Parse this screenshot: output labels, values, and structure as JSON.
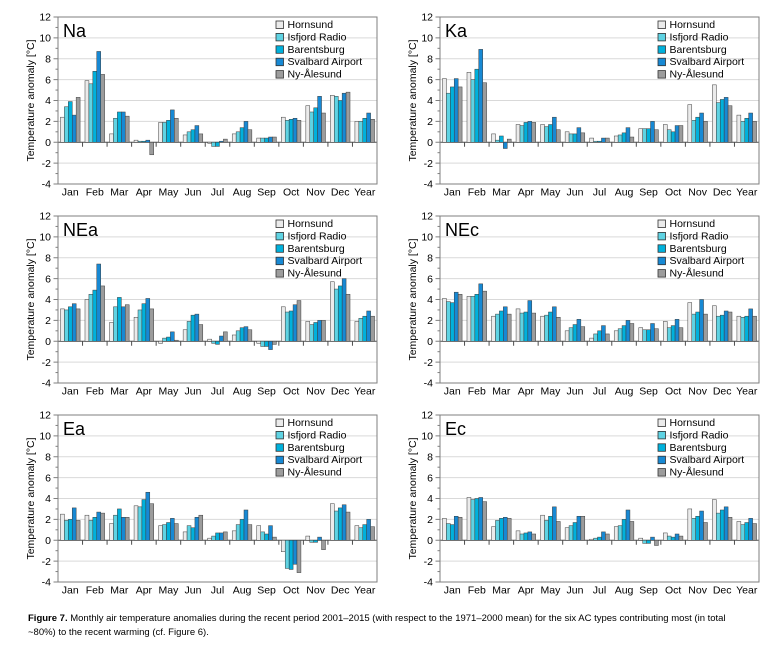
{
  "figure": {
    "caption_prefix": "Figure 7.",
    "caption_text": " Monthly air temperature anomalies during the recent period 2001–2015 (with respect to the 1971–2000 mean) for the six AC types contributing most (in total ~80%) to the recent warming (cf. Figure 6)."
  },
  "stations": [
    {
      "name": "Hornsund",
      "color": "#ebebeb"
    },
    {
      "name": "Isfjord Radio",
      "color": "#5fd3e3"
    },
    {
      "name": "Barentsburg",
      "color": "#00b1dc"
    },
    {
      "name": "Svalbard Airport",
      "color": "#1789d4"
    },
    {
      "name": "Ny-Ålesund",
      "color": "#9c9c9c"
    }
  ],
  "axis_style": {
    "ylabel": "Temperature anomaly [°C]",
    "ylim": [
      -4,
      12
    ],
    "ytick_step": 2,
    "grid": true,
    "legend_position": "top-right",
    "grid_color": "#d9d9d9",
    "zero_line_color": "#4d4d4d",
    "frame_color": "#7f7f7f",
    "bar_stroke_color": "#3d3d3d"
  },
  "chart_data": [
    {
      "type": "bar",
      "title": "Na",
      "ylabel": "Temperature anomaly [°C]",
      "ylim": [
        -4,
        12
      ],
      "ytick_step": 2,
      "grid": true,
      "legend_position": "top-right",
      "categories": [
        "Jan",
        "Feb",
        "Mar",
        "Apr",
        "May",
        "Jun",
        "Jul",
        "Aug",
        "Sep",
        "Oct",
        "Nov",
        "Dec",
        "Year"
      ],
      "series": [
        {
          "name": "Hornsund",
          "values": [
            2.4,
            5.9,
            0.8,
            0.2,
            1.9,
            0.7,
            -0.1,
            0.8,
            0.4,
            2.4,
            3.5,
            4.5,
            2.0
          ]
        },
        {
          "name": "Isfjord Radio",
          "values": [
            3.4,
            5.6,
            2.3,
            0.1,
            1.9,
            1.0,
            -0.4,
            1.0,
            0.4,
            2.1,
            2.9,
            4.4,
            2.0
          ]
        },
        {
          "name": "Barentsburg",
          "values": [
            3.9,
            6.8,
            2.9,
            0.1,
            2.1,
            1.2,
            -0.4,
            1.4,
            0.4,
            2.2,
            3.3,
            4.0,
            2.3
          ]
        },
        {
          "name": "Svalbard Airport",
          "values": [
            2.6,
            8.7,
            2.9,
            0.2,
            3.1,
            1.6,
            0.1,
            2.0,
            0.5,
            2.3,
            4.4,
            4.7,
            2.8
          ]
        },
        {
          "name": "Ny-Ålesund",
          "values": [
            4.3,
            6.5,
            2.5,
            -1.2,
            2.3,
            0.8,
            0.3,
            1.2,
            0.5,
            2.1,
            2.8,
            4.8,
            2.2
          ]
        }
      ]
    },
    {
      "type": "bar",
      "title": "Ka",
      "ylabel": "Temperature anomaly [°C]",
      "ylim": [
        -4,
        12
      ],
      "ytick_step": 2,
      "grid": true,
      "legend_position": "top-right",
      "categories": [
        "Jan",
        "Feb",
        "Mar",
        "Apr",
        "May",
        "Jun",
        "Jul",
        "Aug",
        "Sep",
        "Oct",
        "Nov",
        "Dec",
        "Year"
      ],
      "series": [
        {
          "name": "Hornsund",
          "values": [
            6.1,
            6.7,
            0.8,
            1.7,
            1.7,
            1.0,
            0.4,
            0.6,
            1.3,
            1.7,
            3.6,
            5.5,
            2.6
          ]
        },
        {
          "name": "Isfjord Radio",
          "values": [
            4.7,
            6.0,
            0.2,
            1.6,
            1.5,
            0.8,
            0.1,
            0.7,
            1.3,
            1.2,
            2.1,
            3.8,
            2.0
          ]
        },
        {
          "name": "Barentsburg",
          "values": [
            5.3,
            7.0,
            0.6,
            1.9,
            1.7,
            0.8,
            0.1,
            0.9,
            1.3,
            1.0,
            2.4,
            4.1,
            2.3
          ]
        },
        {
          "name": "Svalbard Airport",
          "values": [
            6.1,
            8.9,
            -0.6,
            2.0,
            2.4,
            1.4,
            0.4,
            1.4,
            2.0,
            1.6,
            2.8,
            4.3,
            2.8
          ]
        },
        {
          "name": "Ny-Ålesund",
          "values": [
            5.3,
            5.7,
            0.3,
            1.9,
            1.2,
            0.9,
            0.4,
            0.5,
            1.2,
            1.6,
            2.0,
            3.5,
            2.0
          ]
        }
      ]
    },
    {
      "type": "bar",
      "title": "NEa",
      "ylabel": "Temperature anomaly [°C]",
      "ylim": [
        -4,
        12
      ],
      "ytick_step": 2,
      "grid": true,
      "legend_position": "top-right",
      "categories": [
        "Jan",
        "Feb",
        "Mar",
        "Apr",
        "May",
        "Jun",
        "Jul",
        "Aug",
        "Sep",
        "Oct",
        "Nov",
        "Dec",
        "Year"
      ],
      "series": [
        {
          "name": "Hornsund",
          "values": [
            3.1,
            4.0,
            1.8,
            2.3,
            -0.2,
            1.1,
            0.2,
            0.6,
            -0.2,
            3.3,
            1.9,
            5.7,
            1.9
          ]
        },
        {
          "name": "Isfjord Radio",
          "values": [
            3.0,
            4.5,
            3.3,
            3.0,
            0.3,
            1.9,
            -0.2,
            1.0,
            -0.5,
            2.8,
            1.6,
            5.0,
            2.2
          ]
        },
        {
          "name": "Barentsburg",
          "values": [
            3.3,
            4.9,
            4.2,
            3.6,
            0.4,
            2.5,
            -0.3,
            1.3,
            -0.5,
            2.9,
            1.8,
            5.3,
            2.4
          ]
        },
        {
          "name": "Svalbard Airport",
          "values": [
            3.6,
            7.4,
            3.3,
            4.1,
            0.9,
            2.6,
            0.5,
            1.4,
            -0.8,
            3.5,
            2.0,
            6.0,
            2.9
          ]
        },
        {
          "name": "Ny-Ålesund",
          "values": [
            3.1,
            5.3,
            3.5,
            3.1,
            0.1,
            1.6,
            0.9,
            1.1,
            -0.3,
            3.9,
            2.0,
            4.5,
            2.4
          ]
        }
      ]
    },
    {
      "type": "bar",
      "title": "NEc",
      "ylabel": "Temperature anomaly [°C]",
      "ylim": [
        -4,
        12
      ],
      "ytick_step": 2,
      "grid": true,
      "legend_position": "top-right",
      "categories": [
        "Jan",
        "Feb",
        "Mar",
        "Apr",
        "May",
        "Jun",
        "Jul",
        "Aug",
        "Sep",
        "Oct",
        "Nov",
        "Dec",
        "Year"
      ],
      "series": [
        {
          "name": "Hornsund",
          "values": [
            4.1,
            4.3,
            2.4,
            3.1,
            2.4,
            1.0,
            0.3,
            1.0,
            1.3,
            1.9,
            3.7,
            3.4,
            2.4
          ]
        },
        {
          "name": "Isfjord Radio",
          "values": [
            3.8,
            4.3,
            2.6,
            2.7,
            2.5,
            1.3,
            0.7,
            1.2,
            1.1,
            1.3,
            2.6,
            2.4,
            2.3
          ]
        },
        {
          "name": "Barentsburg",
          "values": [
            3.7,
            4.5,
            2.9,
            2.8,
            2.8,
            1.6,
            1.0,
            1.5,
            1.1,
            1.5,
            2.8,
            2.5,
            2.4
          ]
        },
        {
          "name": "Svalbard Airport",
          "values": [
            4.7,
            5.5,
            3.3,
            3.9,
            3.3,
            2.1,
            1.5,
            2.0,
            1.7,
            2.1,
            4.0,
            2.9,
            3.1
          ]
        },
        {
          "name": "Ny-Ålesund",
          "values": [
            4.5,
            4.8,
            2.6,
            2.7,
            2.3,
            1.4,
            0.7,
            1.7,
            1.2,
            1.3,
            2.6,
            2.8,
            2.4
          ]
        }
      ]
    },
    {
      "type": "bar",
      "title": "Ea",
      "ylabel": "Temperature anomaly [°C]",
      "ylim": [
        -4,
        12
      ],
      "ytick_step": 2,
      "grid": true,
      "legend_position": "top-right",
      "categories": [
        "Jan",
        "Feb",
        "Mar",
        "Apr",
        "May",
        "Jun",
        "Jul",
        "Aug",
        "Sep",
        "Oct",
        "Nov",
        "Dec",
        "Year"
      ],
      "series": [
        {
          "name": "Hornsund",
          "values": [
            2.5,
            2.4,
            1.6,
            3.3,
            1.4,
            0.8,
            0.2,
            0.9,
            1.4,
            -1.1,
            0.4,
            3.5,
            1.4
          ]
        },
        {
          "name": "Isfjord Radio",
          "values": [
            1.9,
            1.9,
            2.4,
            3.2,
            1.5,
            1.4,
            0.4,
            1.5,
            0.8,
            -2.7,
            -0.2,
            2.8,
            1.2
          ]
        },
        {
          "name": "Barentsburg",
          "values": [
            2.0,
            2.2,
            3.0,
            3.9,
            1.7,
            1.2,
            0.7,
            2.0,
            0.6,
            -2.8,
            -0.2,
            3.1,
            1.5
          ]
        },
        {
          "name": "Svalbard Airport",
          "values": [
            3.1,
            2.7,
            2.2,
            4.6,
            2.1,
            2.2,
            0.7,
            2.9,
            1.4,
            -2.3,
            0.3,
            3.4,
            2.0
          ]
        },
        {
          "name": "Ny-Ålesund",
          "values": [
            1.9,
            2.6,
            2.2,
            3.5,
            1.6,
            2.4,
            0.8,
            1.5,
            0.3,
            -3.1,
            -0.9,
            2.7,
            1.3
          ]
        }
      ]
    },
    {
      "type": "bar",
      "title": "Ec",
      "ylabel": "Temperature anomaly [°C]",
      "ylim": [
        -4,
        12
      ],
      "ytick_step": 2,
      "grid": true,
      "legend_position": "top-right",
      "categories": [
        "Jan",
        "Feb",
        "Mar",
        "Apr",
        "May",
        "Jun",
        "Jul",
        "Aug",
        "Sep",
        "Oct",
        "Nov",
        "Dec",
        "Year"
      ],
      "series": [
        {
          "name": "Hornsund",
          "values": [
            2.1,
            4.1,
            1.3,
            0.9,
            2.4,
            1.2,
            0.1,
            1.3,
            0.2,
            0.7,
            3.0,
            3.9,
            1.8
          ]
        },
        {
          "name": "Isfjord Radio",
          "values": [
            1.6,
            3.9,
            1.9,
            0.6,
            1.9,
            1.4,
            0.2,
            1.4,
            -0.3,
            0.4,
            2.1,
            2.6,
            1.5
          ]
        },
        {
          "name": "Barentsburg",
          "values": [
            1.5,
            4.0,
            2.1,
            0.7,
            2.3,
            1.7,
            0.3,
            2.0,
            -0.3,
            0.3,
            2.3,
            2.9,
            1.7
          ]
        },
        {
          "name": "Svalbard Airport",
          "values": [
            2.3,
            4.1,
            2.2,
            0.8,
            3.2,
            2.3,
            0.8,
            2.9,
            0.3,
            0.6,
            2.8,
            3.2,
            2.1
          ]
        },
        {
          "name": "Ny-Ålesund",
          "values": [
            2.2,
            3.7,
            2.1,
            0.6,
            1.8,
            2.3,
            0.6,
            1.8,
            -0.5,
            0.4,
            1.7,
            2.2,
            1.6
          ]
        }
      ]
    }
  ]
}
